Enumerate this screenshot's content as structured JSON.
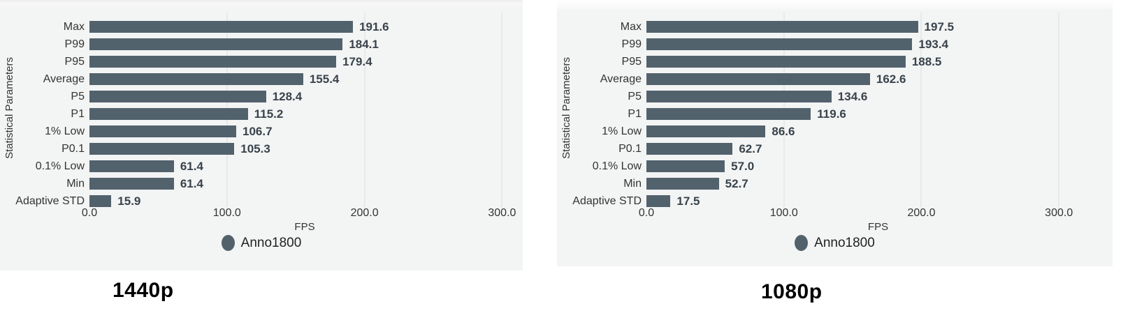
{
  "page": {
    "background_color": "#ffffff",
    "panel_background_color": "#f3f4f4",
    "gridline_color": "#e7e9ea",
    "bar_color": "#52626d",
    "value_label_color": "#39434b"
  },
  "chart_data": [
    {
      "type": "bar",
      "orientation": "horizontal",
      "title": "1440p",
      "xlabel": "FPS",
      "ylabel": "Statistical Parameters",
      "legend_label": "Anno1800",
      "legend_position": "bottom-center",
      "bar_color": "#52626d",
      "grid": true,
      "categories": [
        "Max",
        "P99",
        "P95",
        "Average",
        "P5",
        "P1",
        "1% Low",
        "P0.1",
        "0.1% Low",
        "Min",
        "Adaptive STD"
      ],
      "values": [
        191.6,
        184.1,
        179.4,
        155.4,
        128.4,
        115.2,
        106.7,
        105.3,
        61.4,
        61.4,
        15.9
      ],
      "ticks": [
        0,
        100,
        200,
        300
      ],
      "tick_labels": [
        "0.0",
        "100.0",
        "200.0",
        "300.0"
      ],
      "xlim": [
        0,
        313
      ]
    },
    {
      "type": "bar",
      "orientation": "horizontal",
      "title": "1080p",
      "xlabel": "FPS",
      "ylabel": "Statistical Parameters",
      "legend_label": "Anno1800",
      "legend_position": "bottom-center",
      "bar_color": "#52626d",
      "grid": true,
      "categories": [
        "Max",
        "P99",
        "P95",
        "Average",
        "P5",
        "P1",
        "1% Low",
        "P0.1",
        "0.1% Low",
        "Min",
        "Adaptive STD"
      ],
      "values": [
        197.5,
        193.4,
        188.5,
        162.6,
        134.6,
        119.6,
        86.6,
        62.7,
        57.0,
        52.7,
        17.5
      ],
      "ticks": [
        0,
        100,
        200,
        300
      ],
      "tick_labels": [
        "0.0",
        "100.0",
        "200.0",
        "300.0"
      ],
      "xlim": [
        0,
        337
      ]
    }
  ]
}
